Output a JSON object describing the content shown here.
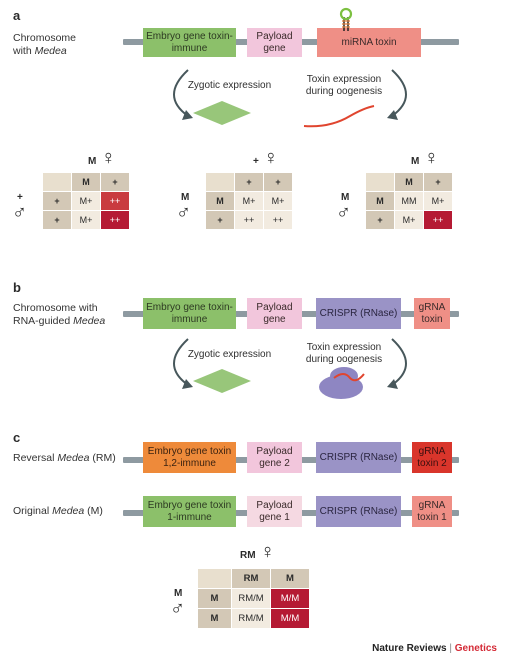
{
  "panel_a": {
    "letter": "a",
    "row_label_line1": "Chromosome",
    "row_label_line2_prefix": "with ",
    "row_label_line2_italic": "Medea",
    "box_embryo": "Embryo gene toxin-immune",
    "box_payload": "Payload gene",
    "box_toxin": "miRNA toxin",
    "zygotic": "Zygotic expression",
    "toxin_expr": "Toxin expression during oogenesis",
    "punnett_female_label": "M",
    "punnett_female2_label": "+",
    "punnett_female3_label": "M",
    "male_labels": [
      "+",
      "M",
      "M"
    ],
    "female_symbol": "♀",
    "male_symbol": "♂",
    "table1": {
      "h": [
        "M",
        "+"
      ],
      "rows": [
        [
          "+",
          "M+",
          "++"
        ],
        [
          "+",
          "M+",
          "++"
        ]
      ]
    },
    "table2": {
      "h": [
        "+",
        "+"
      ],
      "rows": [
        [
          "M",
          "M+",
          "M+"
        ],
        [
          "+",
          "++",
          "++"
        ]
      ]
    },
    "table3": {
      "h": [
        "M",
        "+"
      ],
      "rows": [
        [
          "M",
          "MM",
          "M+"
        ],
        [
          "+",
          "M+",
          "++"
        ]
      ]
    }
  },
  "panel_b": {
    "letter": "b",
    "row_label_line1": "Chromosome with",
    "row_label_line2_prefix": "RNA-guided ",
    "row_label_line2_italic": "Medea",
    "box_embryo": "Embryo gene toxin-immune",
    "box_payload": "Payload gene",
    "box_crispr": "CRISPR (RNase)",
    "box_grna": "gRNA toxin",
    "zygotic": "Zygotic expression",
    "toxin_expr": "Toxin expression during oogenesis"
  },
  "panel_c": {
    "letter": "c",
    "row1_label_prefix": "Reversal ",
    "row1_label_italic": "Medea",
    "row1_label_suffix": " (RM)",
    "row2_label_prefix": "Original ",
    "row2_label_italic": "Medea",
    "row2_label_suffix": " (M)",
    "row1_embryo": "Embryo gene toxin 1,2-immune",
    "row1_payload": "Payload gene 2",
    "row1_crispr": "CRISPR (RNase)",
    "row1_grna": "gRNA toxin 2",
    "row2_embryo": "Embryo gene toxin 1-immune",
    "row2_payload": "Payload gene 1",
    "row2_crispr": "CRISPR (RNase)",
    "row2_grna": "gRNA toxin 1",
    "female_label": "RM",
    "male_label": "M",
    "table": {
      "h": [
        "RM",
        "M"
      ],
      "rows": [
        [
          "M",
          "RM/M",
          "M/M"
        ],
        [
          "M",
          "RM/M",
          "M/M"
        ]
      ]
    }
  },
  "footer": {
    "brand": "Nature Reviews",
    "sep": " | ",
    "journal": "Genetics"
  },
  "colors": {
    "green": "#8cc06a",
    "pink": "#f2c6dc",
    "salmon": "#ef8f86",
    "purple": "#9a93c6",
    "orange": "#ee8a3a",
    "red": "#d9352b",
    "journal": "#d42a36"
  }
}
